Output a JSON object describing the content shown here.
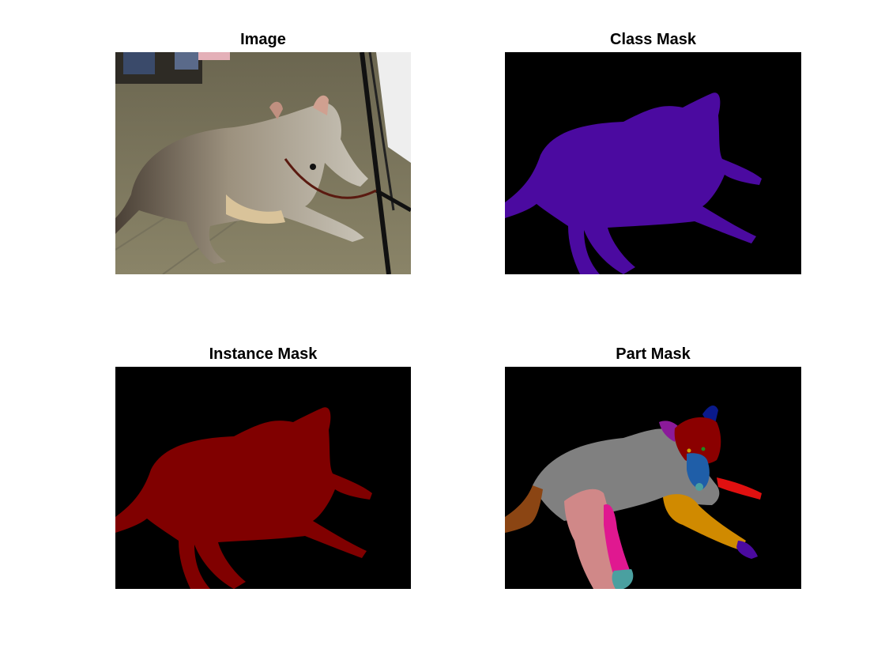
{
  "figure": {
    "panels": [
      {
        "title": "Image",
        "kind": "photo"
      },
      {
        "title": "Class Mask",
        "kind": "mask",
        "fill": "#4b0aa0"
      },
      {
        "title": "Instance Mask",
        "kind": "mask",
        "fill": "#800000"
      },
      {
        "title": "Part Mask",
        "kind": "parts"
      }
    ]
  },
  "colors": {
    "background": "#000000",
    "class_mask": "#4b0aa0",
    "instance_mask": "#800000",
    "part_body": "#808080",
    "part_head": "#8b0000",
    "part_ear_left": "#8b1a9a",
    "part_ear_right": "#0a1a8b",
    "part_muzzle": "#1f5ea8",
    "part_tail": "#8b4513",
    "part_front_leg_right": "#d08a00",
    "part_paw_right": "#4b0aa0",
    "part_extended_leg": "#e01010",
    "part_hind_thigh": "#d08888",
    "part_hind_leg": "#e01890",
    "part_hind_paw": "#4aa0a0"
  }
}
